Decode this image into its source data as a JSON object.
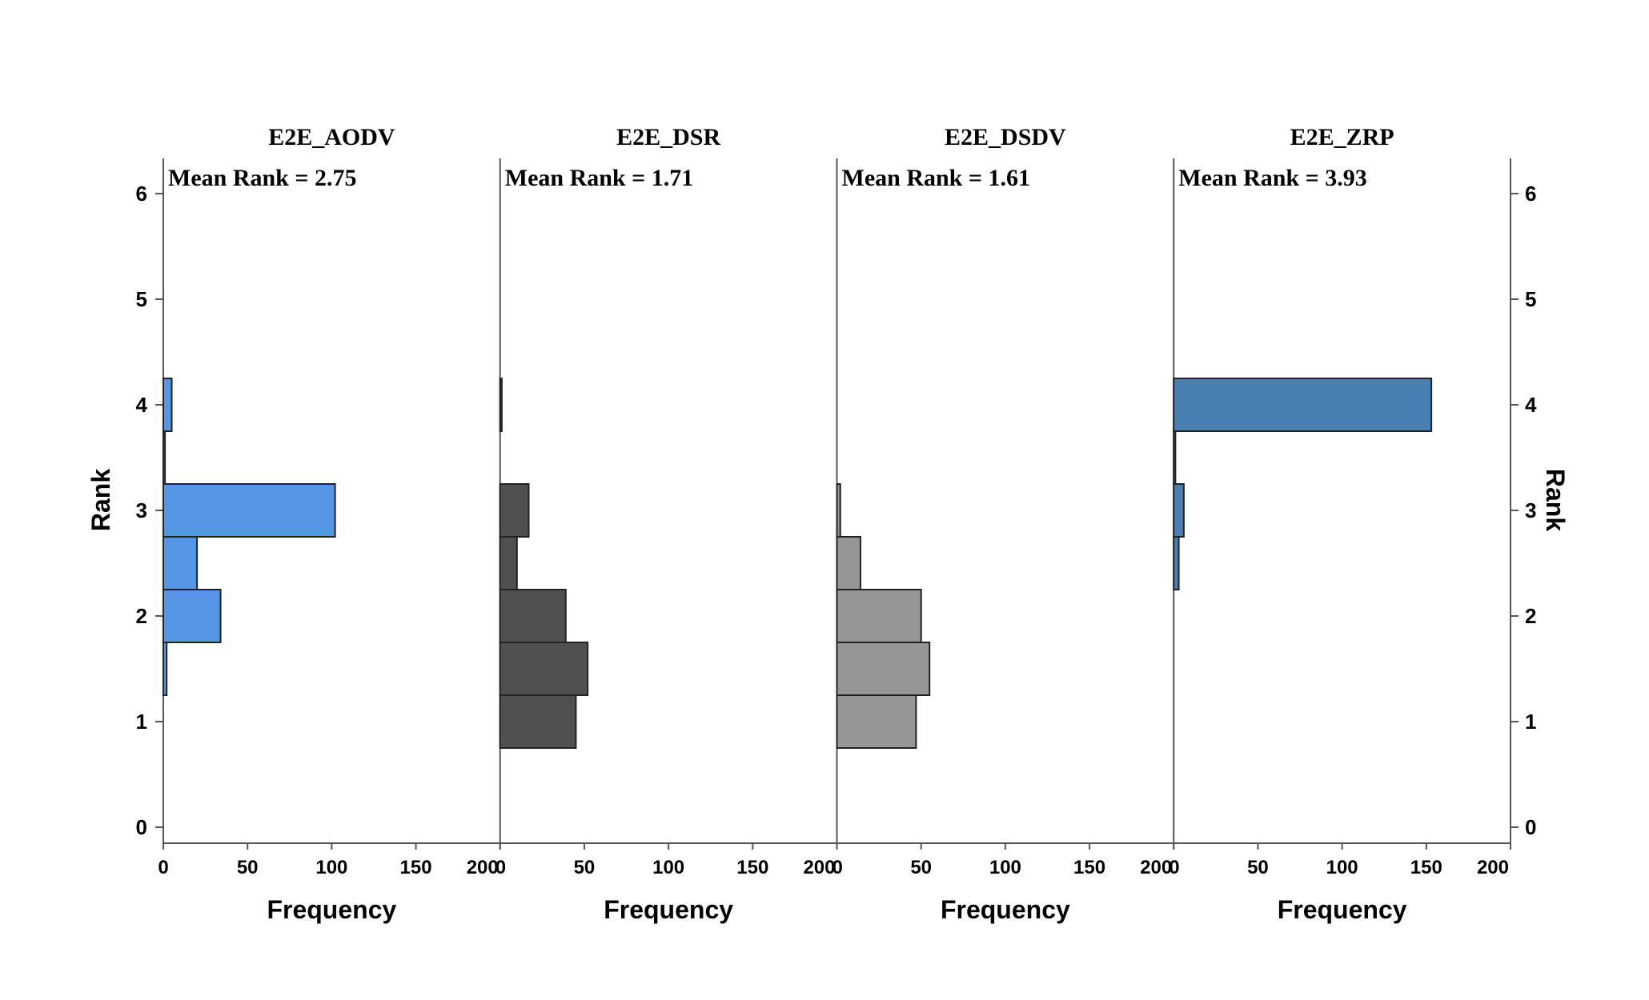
{
  "chart_data": {
    "type": "bar",
    "orientation": "horizontal",
    "ylabel": "Rank",
    "xlabel": "Frequency",
    "ylim": [
      0,
      6
    ],
    "xlim": [
      0,
      200
    ],
    "yticks": [
      0,
      1,
      2,
      3,
      4,
      5,
      6
    ],
    "xticks": [
      0,
      50,
      100,
      150,
      200
    ],
    "bin_width": 0.5,
    "rank_bins": [
      1,
      1.5,
      2,
      2.5,
      3,
      3.5,
      4
    ],
    "panels": [
      {
        "name": "E2E_AODV",
        "mean_label": "Mean Rank = 2.75",
        "color": "#5597e6",
        "values": [
          0,
          2,
          34,
          20,
          102,
          1,
          5
        ]
      },
      {
        "name": "E2E_DSR",
        "mean_label": "Mean Rank = 1.71",
        "color": "#505050",
        "values": [
          45,
          52,
          39,
          10,
          17,
          0,
          1
        ]
      },
      {
        "name": "E2E_DSDV",
        "mean_label": "Mean Rank = 1.61",
        "color": "#969696",
        "values": [
          47,
          55,
          50,
          14,
          2,
          0,
          0
        ]
      },
      {
        "name": "E2E_ZRP",
        "mean_label": "Mean Rank = 3.93",
        "color": "#4a7fb3",
        "values": [
          0,
          0,
          0,
          3,
          6,
          1,
          153
        ]
      }
    ]
  }
}
